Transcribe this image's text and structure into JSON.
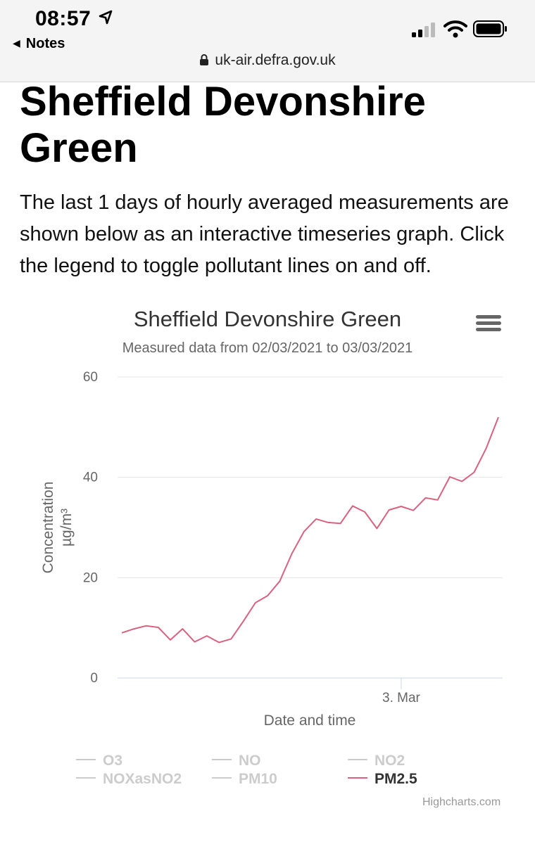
{
  "status_bar": {
    "time": "08:57",
    "back_label": "Notes",
    "url": "uk-air.defra.gov.uk"
  },
  "page": {
    "title": "Sheffield Devonshire Green",
    "description": "The last 1 days of hourly averaged measurements are shown below as an interactive timeseries graph. Click the legend to toggle pollutant lines on and off."
  },
  "chart": {
    "menu_icon": "hamburger-menu-icon",
    "credits": "Highcharts.com",
    "legend": [
      {
        "label": "O3",
        "active": false
      },
      {
        "label": "NO",
        "active": false
      },
      {
        "label": "NO2",
        "active": false
      },
      {
        "label": "NOXasNO2",
        "active": false
      },
      {
        "label": "PM10",
        "active": false
      },
      {
        "label": "PM2.5",
        "active": true
      }
    ]
  },
  "chart_data": {
    "type": "line",
    "title": "Sheffield Devonshire Green",
    "subtitle": "Measured data from 02/03/2021 to 03/03/2021",
    "xlabel": "Date and time",
    "ylabel": "Concentration µg/m³",
    "ylim": [
      0,
      60
    ],
    "yticks": [
      0,
      20,
      40,
      60
    ],
    "x_ticks": [
      {
        "label": "3. Mar",
        "hour": 23
      }
    ],
    "x_range_hours": [
      0,
      31
    ],
    "grid": true,
    "legend_position": "bottom",
    "series": [
      {
        "name": "PM2.5",
        "color": "#d9627f",
        "x_hours": [
          0,
          1,
          2,
          3,
          4,
          5,
          6,
          7,
          8,
          9,
          10,
          11,
          12,
          13,
          14,
          15,
          16,
          17,
          18,
          19,
          20,
          21,
          22,
          23,
          24,
          25,
          26,
          27,
          28,
          29,
          30,
          31
        ],
        "values": [
          9.0,
          9.8,
          10.4,
          10.1,
          7.6,
          9.8,
          7.2,
          8.4,
          7.1,
          7.8,
          11.3,
          15.0,
          16.4,
          19.3,
          24.8,
          29.2,
          31.7,
          31.0,
          30.8,
          34.3,
          33.1,
          29.8,
          33.5,
          34.2,
          33.4,
          35.9,
          35.5,
          40.1,
          39.2,
          41.0,
          45.8,
          52.0
        ]
      }
    ]
  }
}
